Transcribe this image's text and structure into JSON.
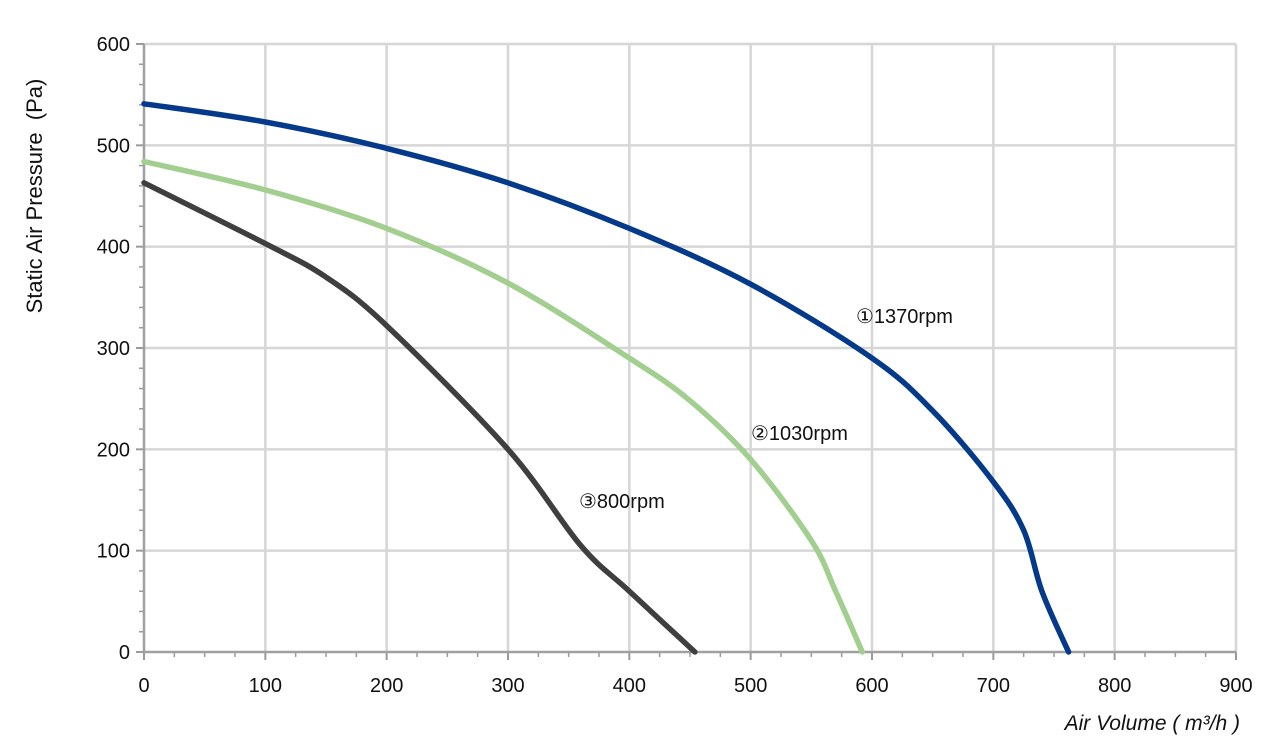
{
  "chart_data": {
    "type": "line",
    "xlabel": "Air Volume ( m³/h )",
    "ylabel": "Static Air Pressure  (Pa)",
    "xlim": [
      0,
      900
    ],
    "ylim": [
      0,
      600
    ],
    "x_ticks": [
      "0",
      "100",
      "200",
      "300",
      "400",
      "500",
      "600",
      "700",
      "800",
      "900"
    ],
    "y_ticks": [
      "0",
      "100",
      "200",
      "300",
      "400",
      "500",
      "600"
    ],
    "grid": true,
    "series": [
      {
        "name": "①1370rpm",
        "color": "#053a8a",
        "points": [
          [
            0,
            541
          ],
          [
            100,
            523
          ],
          [
            200,
            497
          ],
          [
            300,
            463
          ],
          [
            400,
            418
          ],
          [
            500,
            363
          ],
          [
            600,
            290
          ],
          [
            650,
            238
          ],
          [
            700,
            168
          ],
          [
            725,
            120
          ],
          [
            740,
            60
          ],
          [
            762,
            0
          ]
        ]
      },
      {
        "name": "②1030rpm",
        "color": "#a2cf8f",
        "points": [
          [
            0,
            484
          ],
          [
            100,
            456
          ],
          [
            200,
            418
          ],
          [
            300,
            364
          ],
          [
            400,
            290
          ],
          [
            450,
            248
          ],
          [
            500,
            190
          ],
          [
            550,
            110
          ],
          [
            570,
            60
          ],
          [
            592,
            0
          ]
        ]
      },
      {
        "name": "③800rpm",
        "color": "#3f3f3f",
        "points": [
          [
            0,
            463
          ],
          [
            100,
            403
          ],
          [
            150,
            370
          ],
          [
            200,
            322
          ],
          [
            300,
            200
          ],
          [
            360,
            105
          ],
          [
            400,
            60
          ],
          [
            454,
            0
          ]
        ]
      }
    ]
  }
}
